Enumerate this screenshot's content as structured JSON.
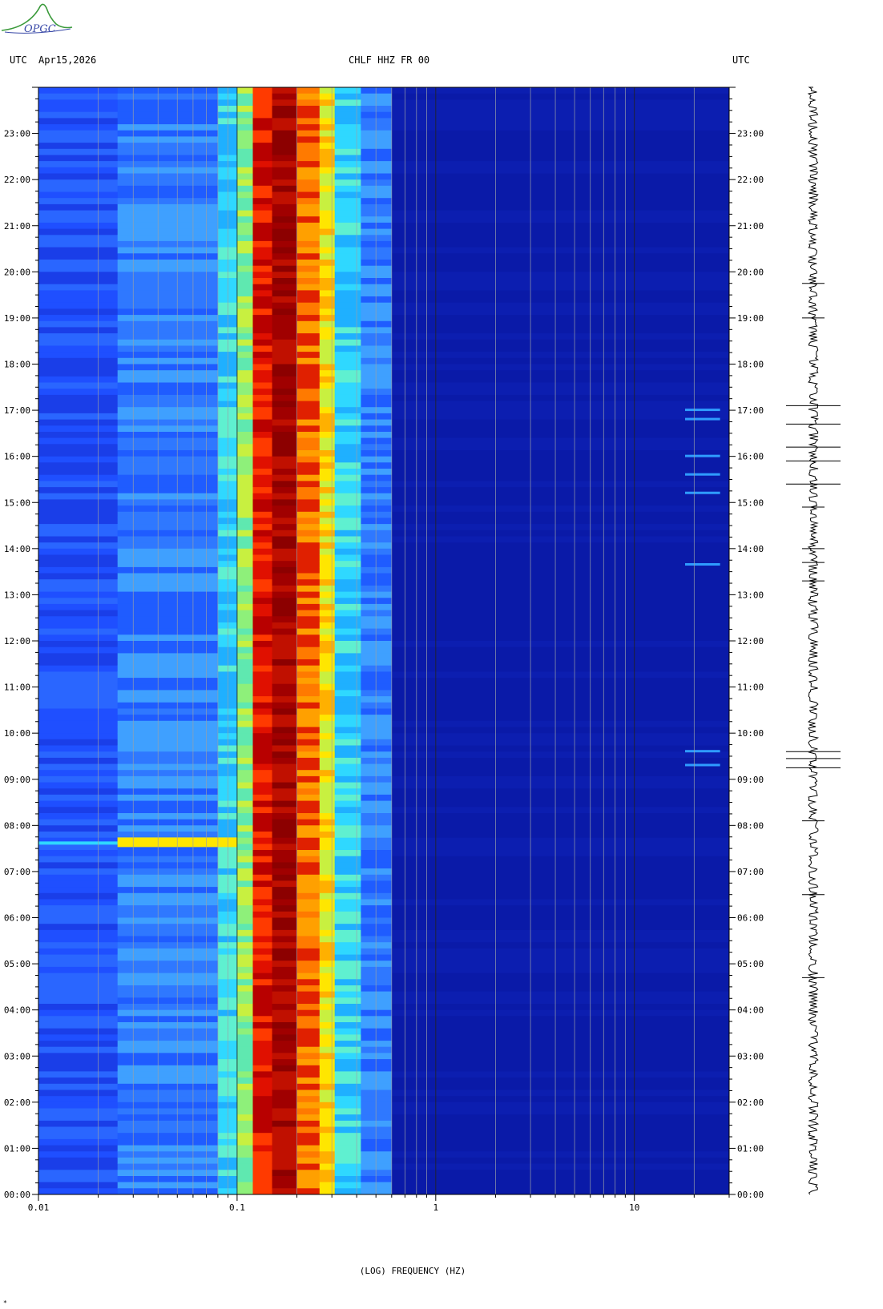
{
  "header": {
    "utc_left": "UTC",
    "date": "Apr15,2026",
    "station": "CHLF HHZ FR 00",
    "utc_right": "UTC"
  },
  "logo_text": "OPGC",
  "x_axis_label": "(LOG) FREQUENCY (HZ)",
  "corner_mark": "*",
  "colors": {
    "background_low": "#0a1aa8",
    "low_blue": "#1f4fff",
    "mid_cyan": "#2fd8ff",
    "green": "#8ef07a",
    "yellow": "#ffe600",
    "orange": "#ff7a00",
    "red": "#e01000",
    "dark_red": "#8c0000",
    "grid": "#9aa0a8",
    "logo_green": "#3a9a3a",
    "logo_blue": "#3a4aa8"
  },
  "chart_data": {
    "type": "heatmap",
    "title": "CHLF HHZ FR 00",
    "xlabel": "(LOG) FREQUENCY (HZ)",
    "ylabel": "UTC",
    "x_scale": "log",
    "xlim": [
      0.01,
      30
    ],
    "x_ticks": [
      {
        "value": 0.01,
        "label": "0.01"
      },
      {
        "value": 0.1,
        "label": "0.1"
      },
      {
        "value": 1,
        "label": "1"
      },
      {
        "value": 10,
        "label": "10"
      }
    ],
    "ylim_hours": [
      0,
      24
    ],
    "y_ticks": [
      "00:00",
      "01:00",
      "02:00",
      "03:00",
      "04:00",
      "05:00",
      "06:00",
      "07:00",
      "08:00",
      "09:00",
      "10:00",
      "11:00",
      "12:00",
      "13:00",
      "14:00",
      "15:00",
      "16:00",
      "17:00",
      "18:00",
      "19:00",
      "20:00",
      "21:00",
      "22:00",
      "23:00"
    ],
    "spectral_bands": [
      {
        "f_min": 0.01,
        "f_max": 0.025,
        "level": "blue"
      },
      {
        "f_min": 0.025,
        "f_max": 0.08,
        "level": "blue-light"
      },
      {
        "f_min": 0.08,
        "f_max": 0.1,
        "level": "cyan"
      },
      {
        "f_min": 0.1,
        "f_max": 0.12,
        "level": "green-yellow"
      },
      {
        "f_min": 0.12,
        "f_max": 0.15,
        "level": "red"
      },
      {
        "f_min": 0.15,
        "f_max": 0.2,
        "level": "dark-red"
      },
      {
        "f_min": 0.2,
        "f_max": 0.26,
        "level": "red-orange"
      },
      {
        "f_min": 0.26,
        "f_max": 0.31,
        "level": "yellow"
      },
      {
        "f_min": 0.31,
        "f_max": 0.42,
        "level": "cyan"
      },
      {
        "f_min": 0.42,
        "f_max": 0.6,
        "level": "blue-light"
      },
      {
        "f_min": 0.6,
        "f_max": 30,
        "level": "dark-blue"
      }
    ],
    "events_hours": [
      7.6,
      9.3,
      9.6,
      13.65,
      15.2,
      15.6,
      16.0,
      16.8,
      17.0
    ],
    "seismogram_events_hours": [
      4.7,
      6.5,
      8.1,
      9.25,
      9.45,
      9.6,
      13.3,
      13.7,
      14.0,
      14.9,
      15.4,
      15.9,
      16.2,
      16.7,
      17.1,
      19.0,
      19.75
    ]
  }
}
